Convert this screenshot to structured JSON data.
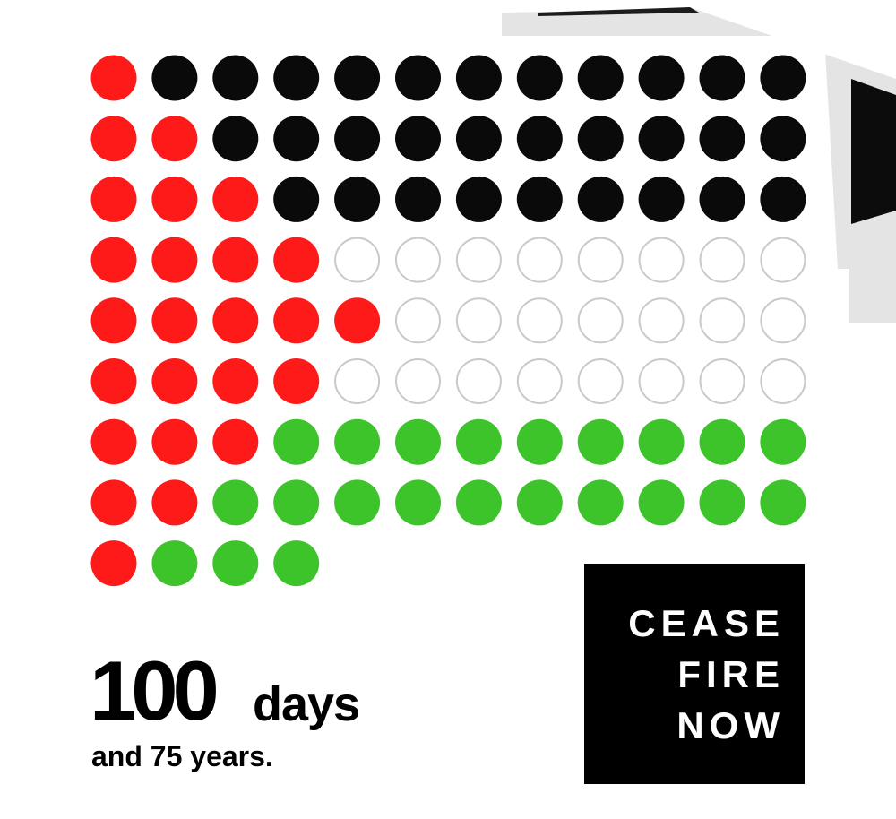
{
  "poster": {
    "big_number": "100",
    "unit": "days",
    "subtitle": "and 75 years.",
    "ceasefire_lines": [
      "CEASE",
      "FIRE",
      "NOW"
    ]
  },
  "dot_grid": {
    "total_dots": 100,
    "columns": 12,
    "rows": [
      [
        "R",
        "K",
        "K",
        "K",
        "K",
        "K",
        "K",
        "K",
        "K",
        "K",
        "K",
        "K"
      ],
      [
        "R",
        "R",
        "K",
        "K",
        "K",
        "K",
        "K",
        "K",
        "K",
        "K",
        "K",
        "K"
      ],
      [
        "R",
        "R",
        "R",
        "K",
        "K",
        "K",
        "K",
        "K",
        "K",
        "K",
        "K",
        "K"
      ],
      [
        "R",
        "R",
        "R",
        "R",
        "W",
        "W",
        "W",
        "W",
        "W",
        "W",
        "W",
        "W"
      ],
      [
        "R",
        "R",
        "R",
        "R",
        "R",
        "W",
        "W",
        "W",
        "W",
        "W",
        "W",
        "W"
      ],
      [
        "R",
        "R",
        "R",
        "R",
        "W",
        "W",
        "W",
        "W",
        "W",
        "W",
        "W",
        "W"
      ],
      [
        "R",
        "R",
        "R",
        "G",
        "G",
        "G",
        "G",
        "G",
        "G",
        "G",
        "G",
        "G"
      ],
      [
        "R",
        "R",
        "G",
        "G",
        "G",
        "G",
        "G",
        "G",
        "G",
        "G",
        "G",
        "G"
      ],
      [
        "R",
        "G",
        "G",
        "G"
      ]
    ],
    "color_key": {
      "R": "#ff1a1a",
      "K": "#0a0a0a",
      "W": "#ffffff",
      "G": "#3dc42b"
    },
    "outline_color": "#c9c9c9"
  },
  "colors": {
    "red": "#ff1a1a",
    "black": "#000000",
    "green": "#3dc42b",
    "paper_shadow": "#d9d9d9",
    "background": "#ffffff"
  }
}
